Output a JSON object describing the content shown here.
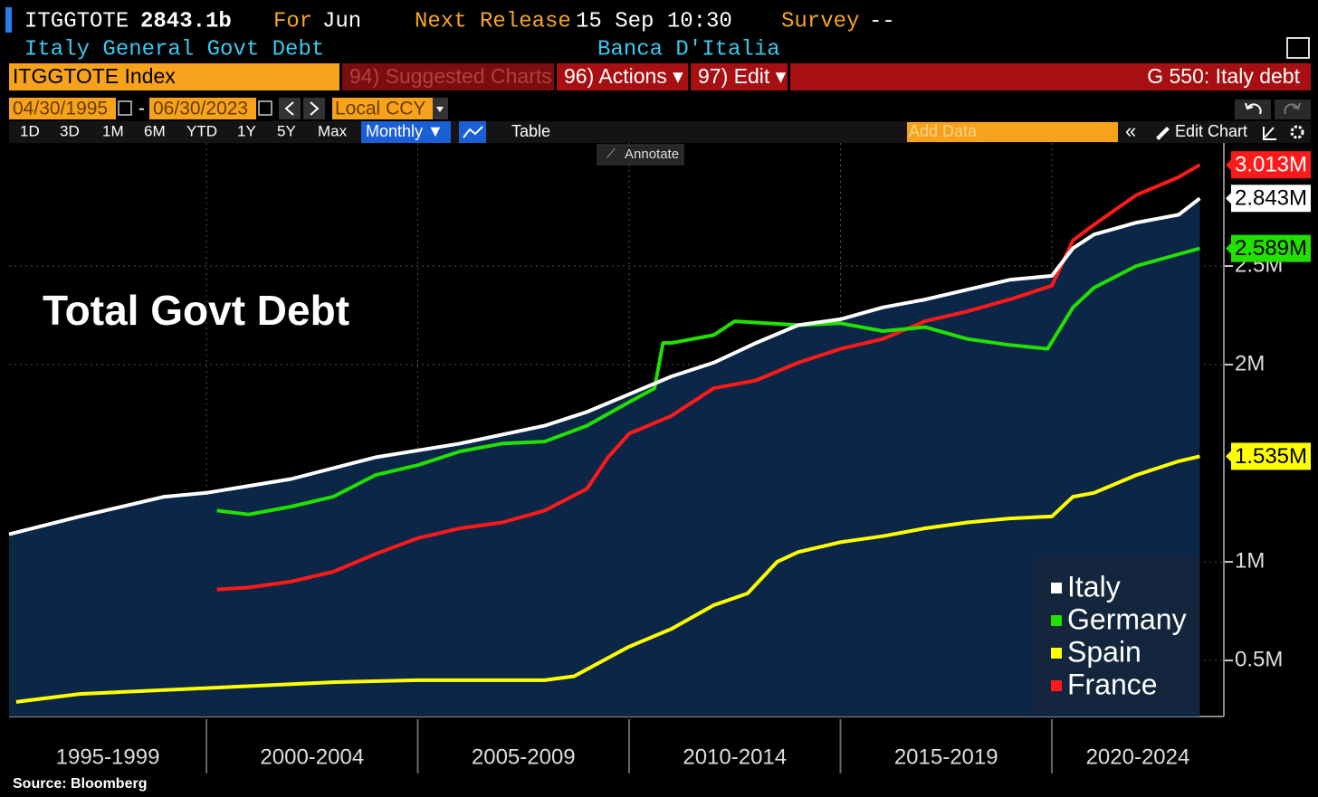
{
  "header": {
    "ticker": "ITGGTOTE",
    "value": "2843.1b",
    "for_label": "For",
    "for_value": "Jun",
    "release_label": "Next Release",
    "release_value": "15 Sep 10:30",
    "survey_label": "Survey",
    "survey_value": "--",
    "description": "Italy General Govt Debt",
    "source": "Banca D'Italia"
  },
  "toolbar": {
    "security": "ITGGTOTE Index",
    "suggested": "94) Suggested Charts",
    "actions": "96) Actions ▾",
    "edit": "97) Edit ▾",
    "function": "G 550: Italy debt"
  },
  "controls": {
    "start_date": "04/30/1995",
    "separator": "-",
    "end_date": "06/30/2023",
    "currency": "Local CCY",
    "periods": [
      "1D",
      "3D",
      "1M",
      "6M",
      "YTD",
      "1Y",
      "5Y",
      "Max"
    ],
    "frequency": "Monthly ▼",
    "table": "Table",
    "add_data": "Add Data",
    "edit_chart": "Edit Chart",
    "annotate": "Annotate"
  },
  "chart_data": {
    "type": "line",
    "annotation": "Total Govt Debt",
    "xlim": [
      1995.33,
      2024.07
    ],
    "xticks": [
      {
        "value": 1995,
        "label": "1995-1999"
      },
      {
        "value": 2000,
        "label": "2000-2004"
      },
      {
        "value": 2005,
        "label": "2005-2009"
      },
      {
        "value": 2010,
        "label": "2010-2014"
      },
      {
        "value": 2015,
        "label": "2015-2019"
      },
      {
        "value": 2020,
        "label": "2020-2024"
      }
    ],
    "ylim": [
      0.216,
      3.124
    ],
    "yticks": [
      {
        "value": 0.5,
        "label": "0.5M"
      },
      {
        "value": 1,
        "label": "1M"
      },
      {
        "value": 2,
        "label": "2M"
      },
      {
        "value": 2.5,
        "label": "2.5M"
      }
    ],
    "grid": true,
    "legend": "lower right",
    "series": [
      {
        "name": "Italy",
        "color": "#ffffff",
        "area_color": "#0b2646",
        "label_text": "#000000",
        "last_label": "2.843M",
        "x": [
          1995.33,
          1997,
          1999,
          2000,
          2002,
          2004,
          2006,
          2008,
          2009,
          2010,
          2011,
          2012,
          2013,
          2014,
          2015,
          2016,
          2017,
          2018,
          2019,
          2020,
          2020.5,
          2021,
          2022,
          2023,
          2023.5
        ],
        "values": [
          1.14,
          1.23,
          1.33,
          1.35,
          1.42,
          1.53,
          1.6,
          1.69,
          1.76,
          1.85,
          1.94,
          2.01,
          2.11,
          2.2,
          2.23,
          2.29,
          2.33,
          2.38,
          2.43,
          2.45,
          2.59,
          2.66,
          2.72,
          2.76,
          2.843
        ]
      },
      {
        "name": "Germany",
        "color": "#22e000",
        "label_text": "#000000",
        "last_label": "2.589M",
        "x": [
          2000.25,
          2001,
          2002,
          2003,
          2004,
          2005,
          2006,
          2007,
          2008,
          2009,
          2010,
          2010.6,
          2010.8,
          2011,
          2012,
          2012.5,
          2014,
          2015,
          2016,
          2017,
          2018,
          2019,
          2019.9,
          2020.5,
          2021,
          2022,
          2023,
          2023.5
        ],
        "values": [
          1.26,
          1.24,
          1.28,
          1.33,
          1.44,
          1.49,
          1.56,
          1.6,
          1.61,
          1.69,
          1.81,
          1.88,
          2.11,
          2.11,
          2.15,
          2.22,
          2.2,
          2.21,
          2.17,
          2.19,
          2.13,
          2.1,
          2.08,
          2.29,
          2.39,
          2.5,
          2.56,
          2.589
        ]
      },
      {
        "name": "Spain",
        "color": "#ffff00",
        "label_text": "#000000",
        "last_label": "1.535M",
        "x": [
          1995.5,
          1997,
          2000,
          2003,
          2005,
          2008,
          2008.7,
          2010,
          2011,
          2012,
          2012.8,
          2013.5,
          2014,
          2015,
          2016,
          2017,
          2018,
          2019,
          2020,
          2020.5,
          2021,
          2022,
          2023,
          2023.5
        ],
        "values": [
          0.29,
          0.33,
          0.36,
          0.39,
          0.4,
          0.4,
          0.42,
          0.57,
          0.66,
          0.78,
          0.84,
          1.0,
          1.05,
          1.1,
          1.13,
          1.17,
          1.2,
          1.22,
          1.23,
          1.33,
          1.35,
          1.44,
          1.51,
          1.535
        ]
      },
      {
        "name": "France",
        "color": "#ff1a1a",
        "label_text": "#ffffff",
        "last_label": "3.013M",
        "x": [
          2000.25,
          2001,
          2002,
          2003,
          2004,
          2005,
          2006,
          2007,
          2008,
          2009,
          2009.5,
          2010,
          2011,
          2012,
          2013,
          2014,
          2015,
          2016,
          2017,
          2018,
          2019,
          2020,
          2020.5,
          2021,
          2022,
          2023,
          2023.5
        ],
        "values": [
          0.86,
          0.87,
          0.9,
          0.95,
          1.04,
          1.12,
          1.17,
          1.2,
          1.26,
          1.37,
          1.53,
          1.65,
          1.74,
          1.88,
          1.92,
          2.01,
          2.08,
          2.13,
          2.22,
          2.27,
          2.33,
          2.4,
          2.63,
          2.71,
          2.86,
          2.95,
          3.013
        ]
      }
    ]
  },
  "footer": {
    "source": "Source: Bloomberg"
  }
}
